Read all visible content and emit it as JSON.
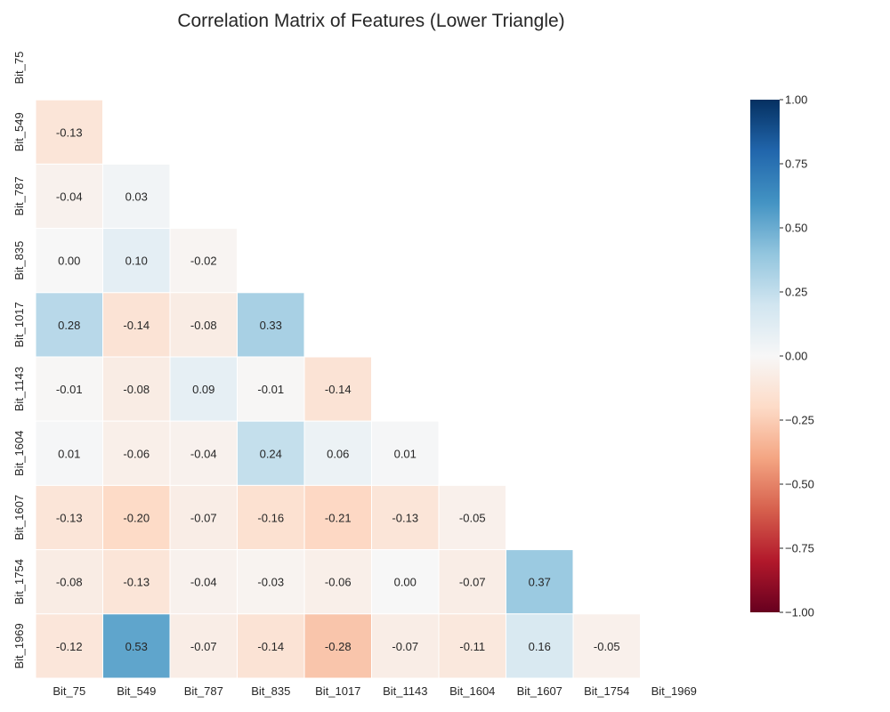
{
  "chart_data": {
    "type": "heatmap",
    "title": "Correlation Matrix of Features (Lower Triangle)",
    "labels": [
      "Bit_75",
      "Bit_549",
      "Bit_787",
      "Bit_835",
      "Bit_1017",
      "Bit_1143",
      "Bit_1604",
      "Bit_1607",
      "Bit_1754",
      "Bit_1969"
    ],
    "matrix": [
      [
        null,
        null,
        null,
        null,
        null,
        null,
        null,
        null,
        null,
        null
      ],
      [
        -0.13,
        null,
        null,
        null,
        null,
        null,
        null,
        null,
        null,
        null
      ],
      [
        -0.04,
        0.03,
        null,
        null,
        null,
        null,
        null,
        null,
        null,
        null
      ],
      [
        0.0,
        0.1,
        -0.02,
        null,
        null,
        null,
        null,
        null,
        null,
        null
      ],
      [
        0.28,
        -0.14,
        -0.08,
        0.33,
        null,
        null,
        null,
        null,
        null,
        null
      ],
      [
        -0.01,
        -0.08,
        0.09,
        -0.01,
        -0.14,
        null,
        null,
        null,
        null,
        null
      ],
      [
        0.01,
        -0.06,
        -0.04,
        0.24,
        0.06,
        0.01,
        null,
        null,
        null,
        null
      ],
      [
        -0.13,
        -0.2,
        -0.07,
        -0.16,
        -0.21,
        -0.13,
        -0.05,
        null,
        null,
        null
      ],
      [
        -0.08,
        -0.13,
        -0.04,
        -0.03,
        -0.06,
        0.0,
        -0.07,
        0.37,
        null,
        null
      ],
      [
        -0.12,
        0.53,
        -0.07,
        -0.14,
        -0.28,
        -0.07,
        -0.11,
        0.16,
        -0.05,
        null
      ]
    ],
    "value_format": "2 decimals",
    "colorbar": {
      "min": -1.0,
      "max": 1.0,
      "ticks": [
        "1.00",
        "0.75",
        "0.50",
        "0.25",
        "0.00",
        "−0.25",
        "−0.50",
        "−0.75",
        "−1.00"
      ],
      "colormap": "RdBu"
    }
  }
}
